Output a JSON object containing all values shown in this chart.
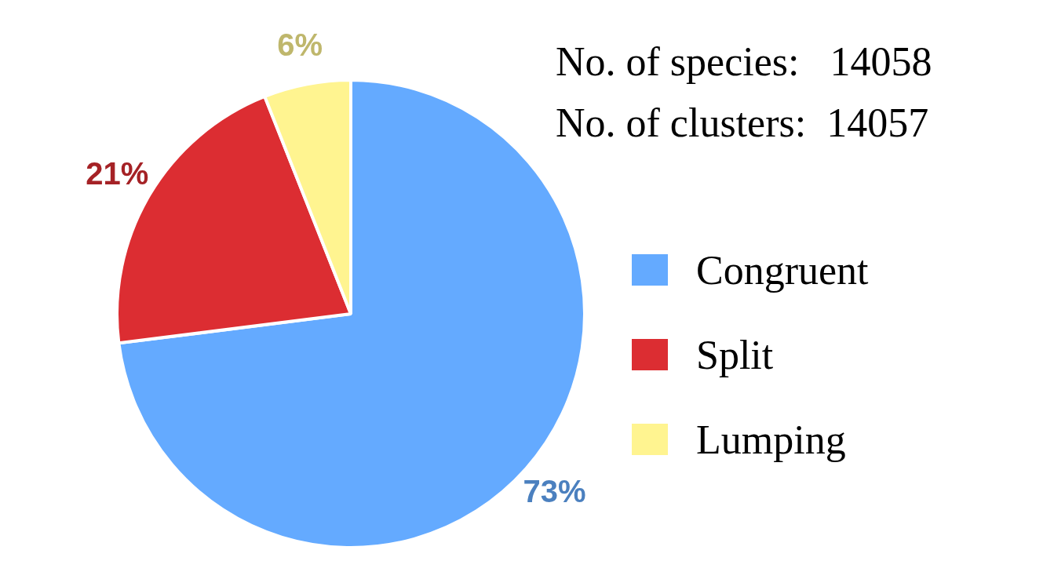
{
  "chart_data": {
    "type": "pie",
    "categories": [
      "Congruent",
      "Split",
      "Lumping"
    ],
    "values": [
      73,
      21,
      6
    ],
    "colors": [
      "#64aaff",
      "#dc2d32",
      "#fff490"
    ],
    "value_labels": [
      "73%",
      "21%",
      "6%"
    ],
    "legend": "right",
    "annotations": [
      "No. of species:   14058",
      "No. of clusters:  14057"
    ]
  }
}
